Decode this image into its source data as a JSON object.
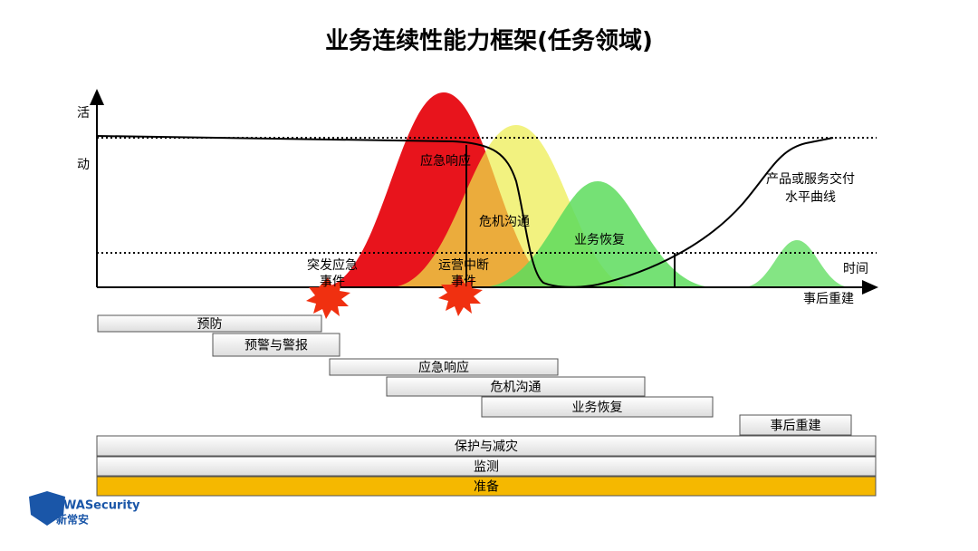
{
  "header": {
    "title": "业务连续性能力框架(任务领域)"
  },
  "axes": {
    "y_label": [
      "活",
      "动"
    ],
    "x_label": "时间",
    "x_end_label": "事后重建"
  },
  "curves": {
    "emergency_response": "应急响应",
    "crisis_communication": "危机沟通",
    "business_recovery": "业务恢复",
    "delivery_level": [
      "产品或服务交付",
      "水平曲线"
    ]
  },
  "events": {
    "sudden": [
      "突发应急",
      "事件"
    ],
    "disruption": [
      "运营中断",
      "事件"
    ]
  },
  "bars": [
    "预防",
    "预警与警报",
    "应急响应",
    "危机沟通",
    "业务恢复",
    "事后重建",
    "保护与减灾",
    "监测",
    "准备"
  ],
  "logo": {
    "brand": "WASecurity",
    "name": "新常安"
  }
}
